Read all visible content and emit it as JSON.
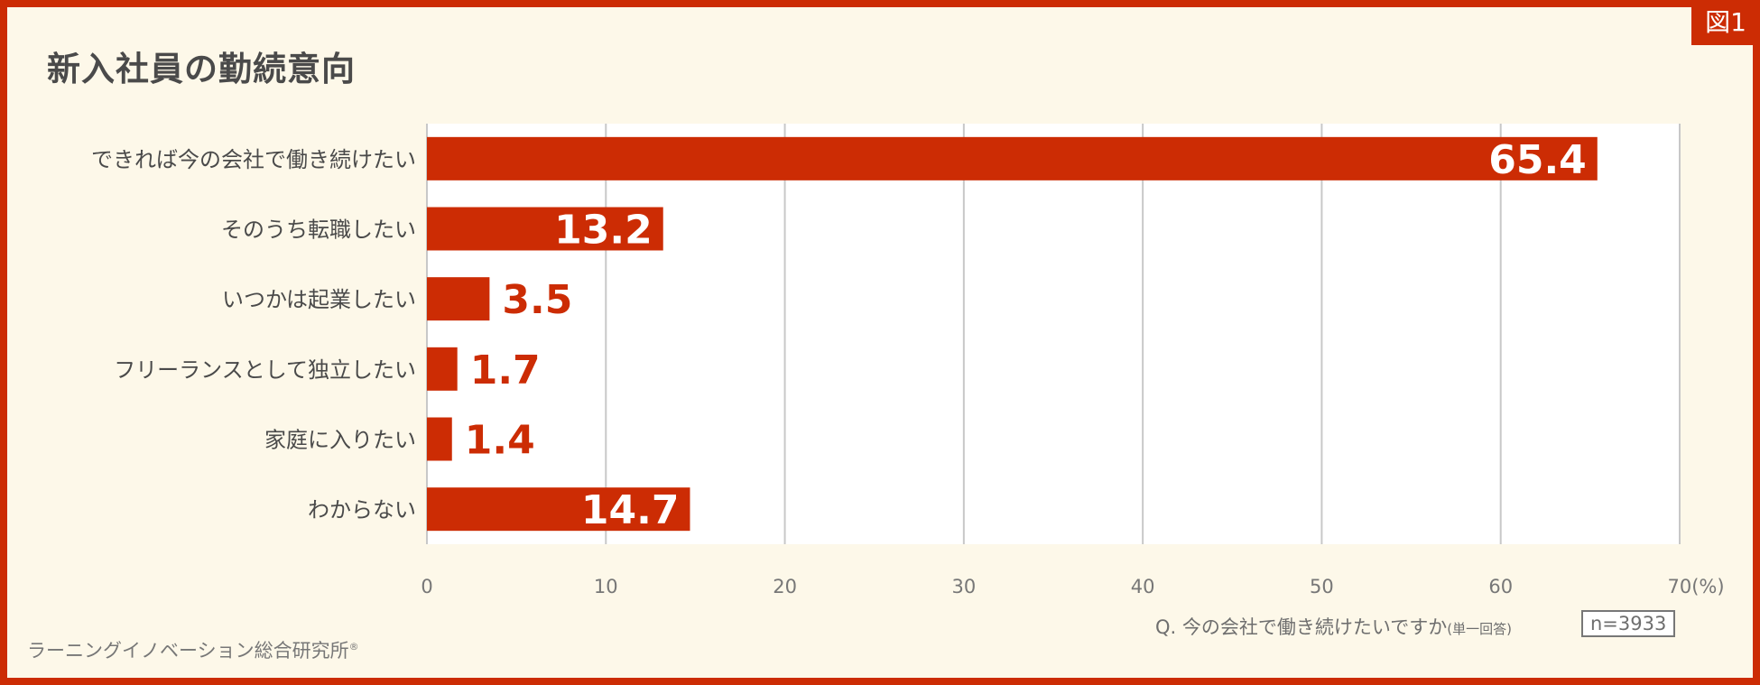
{
  "badge": "図1",
  "chart_data": {
    "type": "bar",
    "orientation": "horizontal",
    "title": "新入社員の勤続意向",
    "categories": [
      "できれば今の会社で働き続けたい",
      "そのうち転職したい",
      "いつかは起業したい",
      "フリーランスとして独立したい",
      "家庭に入りたい",
      "わからない"
    ],
    "values": [
      65.4,
      13.2,
      3.5,
      1.7,
      1.4,
      14.7
    ],
    "value_labels": [
      "65.4",
      "13.2",
      "3.5",
      "1.7",
      "1.4",
      "14.7"
    ],
    "xlim": [
      0,
      70
    ],
    "x_ticks": [
      "0",
      "10",
      "20",
      "30",
      "40",
      "50",
      "60",
      "70(%)"
    ],
    "grid": true,
    "bar_color": "#cc2c04"
  },
  "question": "Q. 今の会社で働き続けたいですか",
  "question_note": "(単一回答)",
  "sample_size": "n=3933",
  "credit": "ラーニングイノベーション総合研究所",
  "credit_mark": "®"
}
